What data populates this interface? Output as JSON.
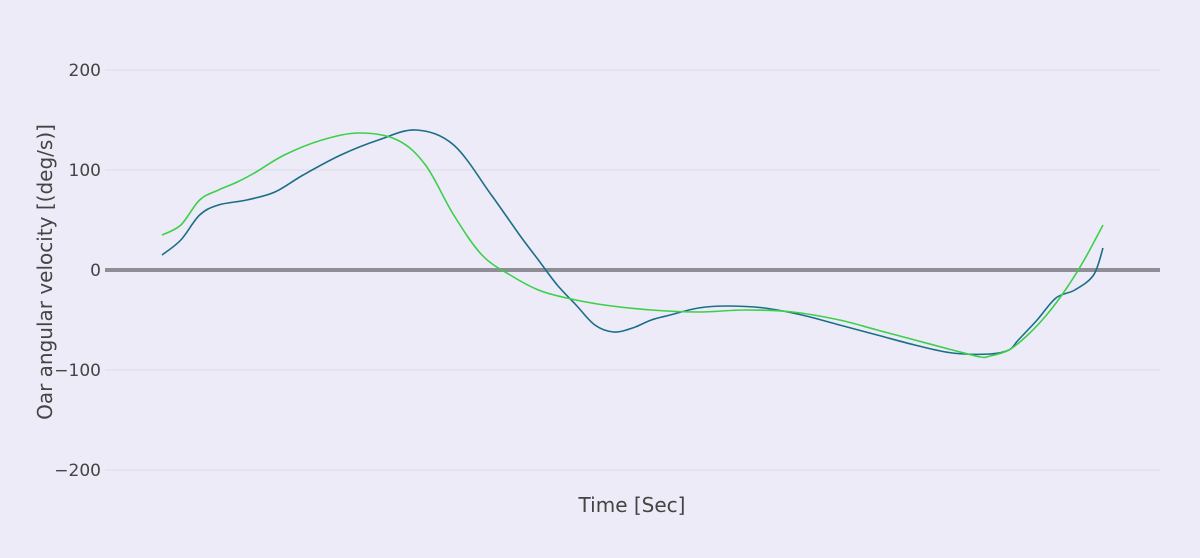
{
  "chart_data": {
    "type": "line",
    "title": "",
    "xlabel": "Time [Sec]",
    "ylabel": "Oar angular velocity [(deg/s)]",
    "ylim": [
      -230,
      225
    ],
    "y_ticks": [
      200,
      100,
      0,
      -100,
      -200
    ],
    "y_tick_labels": [
      "200",
      "100",
      "0",
      "−100",
      "−200"
    ],
    "x_tick_labels_shown": false,
    "grid": true,
    "zero_line": true,
    "colors": {
      "background": "#edebf7",
      "grid": "#dddbe6",
      "zero_line": "#8f8e96",
      "text": "#444444"
    },
    "series": [
      {
        "color": "#1b6e87",
        "x": [
          0.0,
          0.02,
          0.04,
          0.06,
          0.09,
          0.12,
          0.15,
          0.19,
          0.23,
          0.27,
          0.31,
          0.35,
          0.38,
          0.4,
          0.42,
          0.44,
          0.46,
          0.48,
          0.5,
          0.52,
          0.54,
          0.57,
          0.6,
          0.64,
          0.68,
          0.72,
          0.76,
          0.8,
          0.84,
          0.88,
          0.9,
          0.91,
          0.93,
          0.95,
          0.97,
          0.99,
          1.0
        ],
        "y": [
          15,
          30,
          55,
          65,
          70,
          78,
          95,
          115,
          130,
          140,
          125,
          75,
          35,
          10,
          -15,
          -35,
          -55,
          -62,
          -58,
          -50,
          -45,
          -38,
          -36,
          -38,
          -45,
          -55,
          -65,
          -75,
          -83,
          -84,
          -80,
          -70,
          -50,
          -28,
          -20,
          -5,
          22
        ]
      },
      {
        "color": "#3cd04a",
        "x": [
          0.0,
          0.02,
          0.04,
          0.06,
          0.08,
          0.1,
          0.13,
          0.17,
          0.21,
          0.25,
          0.28,
          0.31,
          0.34,
          0.37,
          0.4,
          0.43,
          0.47,
          0.52,
          0.57,
          0.62,
          0.67,
          0.72,
          0.76,
          0.8,
          0.84,
          0.87,
          0.88,
          0.9,
          0.92,
          0.94,
          0.96,
          0.98,
          1.0
        ],
        "y": [
          35,
          45,
          70,
          80,
          88,
          98,
          115,
          130,
          137,
          130,
          105,
          55,
          15,
          -5,
          -20,
          -28,
          -35,
          -40,
          -42,
          -40,
          -42,
          -50,
          -60,
          -70,
          -80,
          -87,
          -86,
          -80,
          -65,
          -45,
          -20,
          10,
          45
        ]
      }
    ]
  }
}
